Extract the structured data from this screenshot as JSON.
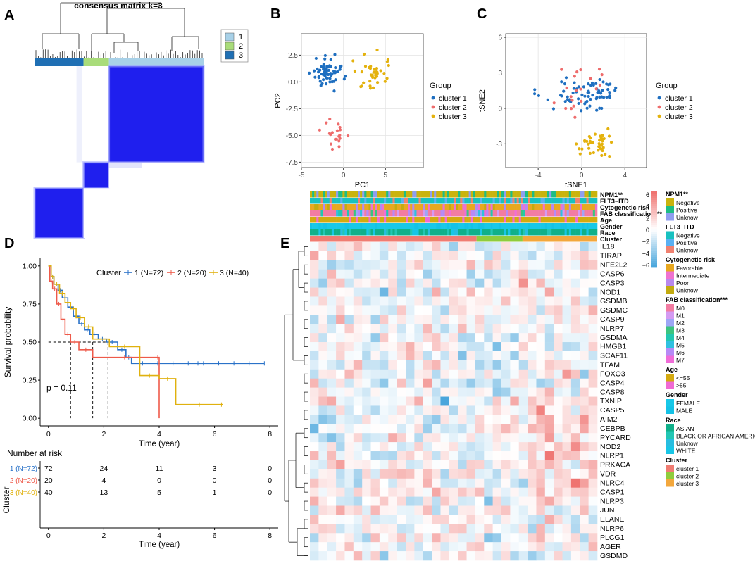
{
  "colors": {
    "cl1": "#1f6fc0",
    "cl2": "#ee6c6c",
    "cl3": "#e4b20e",
    "km1": "#2a72c8",
    "km2": "#ee5a4a",
    "km3": "#e0b10e",
    "cons_blue": "#1f1fee",
    "heat_pos": "#ef7370",
    "heat_neg": "#4aa6dc"
  },
  "chart_data": [
    {
      "id": "A",
      "type": "heatmap",
      "panel_label": "A",
      "title": "consensus matrix k=3",
      "legend": [
        {
          "label": "1",
          "color": "#a8d1e8"
        },
        {
          "label": "2",
          "color": "#a9dc7a"
        },
        {
          "label": "3",
          "color": "#1f6fb4"
        }
      ],
      "cluster_blocks": [
        {
          "cluster": "3",
          "fraction": 0.29
        },
        {
          "cluster": "2",
          "fraction": 0.15
        },
        {
          "cluster": "1",
          "fraction": 0.56
        }
      ]
    },
    {
      "id": "B",
      "type": "scatter",
      "panel_label": "B",
      "xlabel": "PC1",
      "ylabel": "PC2",
      "xlim": [
        -5,
        9.5
      ],
      "ylim": [
        -8,
        4.5
      ],
      "xticks": [
        -5,
        0,
        5
      ],
      "yticks": [
        -7.5,
        -5.0,
        -2.5,
        0.0,
        2.5
      ],
      "ytick_labels": [
        "-7.5",
        "-5.0",
        "-2.5",
        "0.0",
        "2.5"
      ],
      "legend_title": "Group",
      "series": [
        {
          "name": "cluster 1",
          "n": 72,
          "center": [
            -1.8,
            0.9
          ],
          "spread": [
            1.5,
            1.1
          ]
        },
        {
          "name": "cluster 2",
          "n": 20,
          "center": [
            -0.5,
            -4.8
          ],
          "spread": [
            1.4,
            1.4
          ]
        },
        {
          "name": "cluster 3",
          "n": 40,
          "center": [
            3.4,
            1.0
          ],
          "spread": [
            1.8,
            1.2
          ]
        }
      ]
    },
    {
      "id": "C",
      "type": "scatter",
      "panel_label": "C",
      "xlabel": "tSNE1",
      "ylabel": "tSNE2",
      "xlim": [
        -7,
        6
      ],
      "ylim": [
        -5,
        6.3
      ],
      "xticks": [
        -4,
        0,
        4
      ],
      "yticks": [
        -3,
        0,
        3,
        6
      ],
      "ytick_labels": [
        "-3",
        "0",
        "3",
        "6"
      ],
      "legend_title": "Group",
      "series": [
        {
          "name": "cluster 1",
          "n": 72,
          "center": [
            0.5,
            1.2
          ],
          "spread": [
            2.6,
            1.2
          ]
        },
        {
          "name": "cluster 2",
          "n": 20,
          "center": [
            -0.6,
            1.8
          ],
          "spread": [
            2.0,
            1.8
          ]
        },
        {
          "name": "cluster 3",
          "n": 40,
          "center": [
            1.3,
            -3.2
          ],
          "spread": [
            1.4,
            0.9
          ]
        }
      ]
    },
    {
      "id": "D",
      "type": "line",
      "panel_label": "D",
      "xlabel": "Time (year)",
      "ylabel": "Survival probability",
      "xlim": [
        -0.3,
        8.3
      ],
      "ylim": [
        -0.05,
        1.05
      ],
      "xticks": [
        0,
        2,
        4,
        6,
        8
      ],
      "yticks": [
        0,
        0.25,
        0.5,
        0.75,
        1.0
      ],
      "ytick_labels": [
        "0.00",
        "0.25",
        "0.50",
        "0.75",
        "1.00"
      ],
      "legend_title": "Cluster",
      "pvalue": "p = 0.11",
      "median_line_y": 0.5,
      "median_times": [
        0.8,
        1.6,
        2.15
      ],
      "series": [
        {
          "name": "1 (N=72)",
          "times": [
            0,
            0.1,
            0.2,
            0.35,
            0.5,
            0.7,
            0.9,
            1.1,
            1.3,
            1.5,
            1.8,
            2.1,
            2.5,
            2.8,
            3.0,
            7.8
          ],
          "surv": [
            1.0,
            0.93,
            0.88,
            0.84,
            0.79,
            0.73,
            0.67,
            0.62,
            0.58,
            0.55,
            0.52,
            0.5,
            0.45,
            0.4,
            0.36,
            0.36
          ]
        },
        {
          "name": "2 (N=20)",
          "times": [
            0,
            0.05,
            0.15,
            0.3,
            0.45,
            0.6,
            0.8,
            1.1,
            1.6,
            3.9,
            4.0
          ],
          "surv": [
            1.0,
            0.9,
            0.85,
            0.75,
            0.65,
            0.55,
            0.5,
            0.45,
            0.4,
            0.4,
            0.0
          ]
        },
        {
          "name": "3 (N=40)",
          "times": [
            0,
            0.1,
            0.2,
            0.4,
            0.6,
            0.8,
            1.0,
            1.3,
            1.6,
            2.2,
            3.3,
            4.0,
            4.6,
            6.3
          ],
          "surv": [
            1.0,
            0.93,
            0.88,
            0.82,
            0.76,
            0.72,
            0.66,
            0.6,
            0.52,
            0.47,
            0.28,
            0.26,
            0.09,
            0.09
          ]
        }
      ],
      "risk_table": {
        "title": "Number at risk",
        "ylabel": "Cluster",
        "time_points": [
          0,
          2,
          4,
          6,
          8
        ],
        "rows": [
          {
            "label": "1 (N=72)",
            "values": [
              "72",
              "24",
              "11",
              "3",
              "0"
            ]
          },
          {
            "label": "2 (N=20)",
            "values": [
              "20",
              "4",
              "0",
              "0",
              "0"
            ]
          },
          {
            "label": "3 (N=40)",
            "values": [
              "40",
              "13",
              "5",
              "1",
              "0"
            ]
          }
        ]
      }
    },
    {
      "id": "E",
      "type": "heatmap",
      "panel_label": "E",
      "n_columns": 132,
      "annotation_tracks": [
        "NPM1**",
        "FLT3−ITD",
        "Cytogenetic risk",
        "FAB classification***",
        "Age",
        "Gender",
        "Race",
        "Cluster"
      ],
      "genes": [
        "IL18",
        "TIRAP",
        "NFE2L2",
        "CASP6",
        "CASP3",
        "NOD1",
        "GSDMB",
        "GSDMC",
        "CASP9",
        "NLRP7",
        "GSDMA",
        "HMGB1",
        "SCAF11",
        "TFAM",
        "FOXO3",
        "CASP4",
        "CASP8",
        "TXNIP",
        "CASP5",
        "AIM2",
        "CEBPB",
        "PYCARD",
        "NOD2",
        "NLRP1",
        "PRKACA",
        "VDR",
        "NLRC4",
        "CASP1",
        "NLRP3",
        "JUN",
        "ELANE",
        "NLRP6",
        "PLCG1",
        "AGER",
        "GSDMD"
      ],
      "colorbar": {
        "ticks": [
          "6",
          "4",
          "2",
          "0",
          "−2",
          "−4",
          "−6"
        ],
        "range": [
          -6,
          6
        ]
      },
      "legends": [
        {
          "title": "NPM1**",
          "items": [
            {
              "label": "Negative",
              "color": "#c9b30e"
            },
            {
              "label": "Positive",
              "color": "#1dbd85"
            },
            {
              "label": "Unknow",
              "color": "#8f9ef0"
            }
          ]
        },
        {
          "title": "FLT3−ITD",
          "items": [
            {
              "label": "Negative",
              "color": "#18c1c0"
            },
            {
              "label": "Positive",
              "color": "#5ab0f2"
            },
            {
              "label": "Unknow",
              "color": "#f08170"
            }
          ]
        },
        {
          "title": "Cytogenetic risk",
          "items": [
            {
              "label": "Favorable",
              "color": "#e8a820"
            },
            {
              "label": "Intermediate",
              "color": "#ef72d0"
            },
            {
              "label": "Poor",
              "color": "#b888ee"
            },
            {
              "label": "Unknow",
              "color": "#c3ab10"
            }
          ]
        },
        {
          "title": "FAB classification***",
          "items": [
            {
              "label": "M0",
              "color": "#f27ca2"
            },
            {
              "label": "M1",
              "color": "#d49af2"
            },
            {
              "label": "M2",
              "color": "#9ea6f6"
            },
            {
              "label": "M3",
              "color": "#3cc480"
            },
            {
              "label": "M4",
              "color": "#22c7b0"
            },
            {
              "label": "M5",
              "color": "#30c0e0"
            },
            {
              "label": "M6",
              "color": "#b68af6"
            },
            {
              "label": "M7",
              "color": "#f06cd8"
            }
          ]
        },
        {
          "title": "Age",
          "items": [
            {
              "label": "<=55",
              "color": "#d4aa10"
            },
            {
              "label": ">55",
              "color": "#f06ad4"
            }
          ]
        },
        {
          "title": "Gender",
          "items": [
            {
              "label": "FEMALE",
              "color": "#18c8e8"
            },
            {
              "label": "MALE",
              "color": "#14c2e6"
            }
          ]
        },
        {
          "title": "Race",
          "items": [
            {
              "label": "ASIAN",
              "color": "#10b08a"
            },
            {
              "label": "BLACK OR AFRICAN AMERICAN",
              "color": "#22c6b4"
            },
            {
              "label": "Unknow",
              "color": "#28bde0"
            },
            {
              "label": "WHITE",
              "color": "#18c6e6"
            }
          ]
        },
        {
          "title": "Cluster",
          "items": [
            {
              "label": "cluster 1",
              "color": "#f07c72"
            },
            {
              "label": "cluster 2",
              "color": "#8fcc3c"
            },
            {
              "label": "cluster 3",
              "color": "#f3a73c"
            }
          ]
        }
      ]
    }
  ]
}
